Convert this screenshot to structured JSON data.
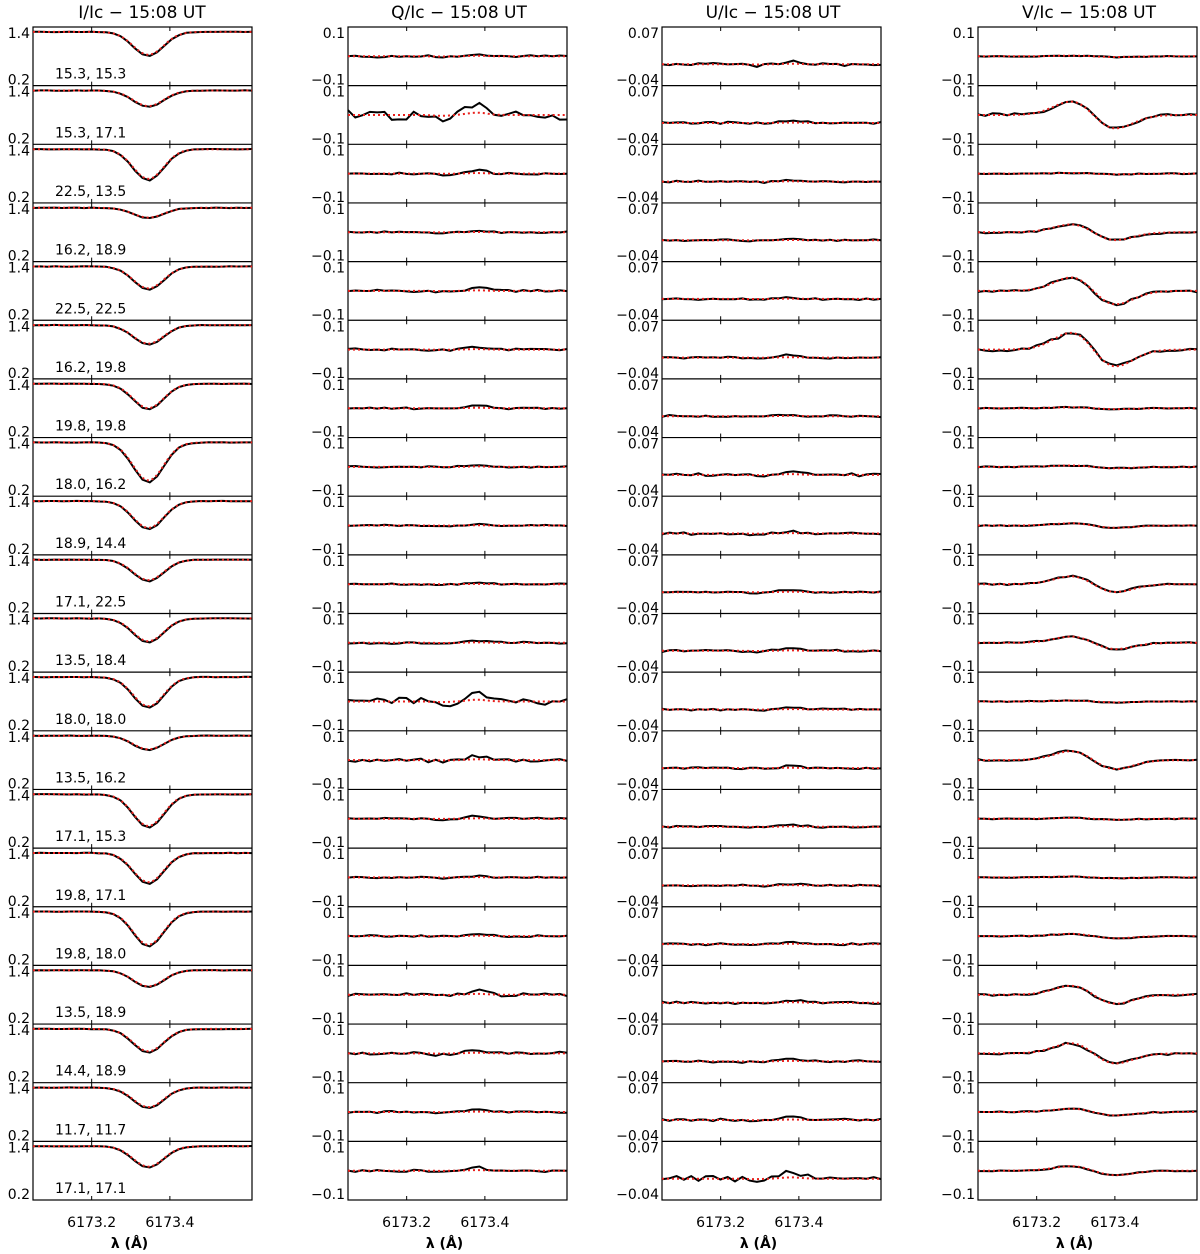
{
  "chart_data": {
    "type": "line",
    "xlabel": "λ (Å)",
    "x_tick_labels": [
      "6173.2",
      "6173.4"
    ],
    "x_ticks": [
      6173.2,
      6173.4
    ],
    "xlim": [
      6173.05,
      6173.61
    ],
    "rows": 20,
    "row_labels": [
      "15.3, 15.3",
      "15.3, 17.1",
      "22.5, 13.5",
      "16.2, 18.9",
      "22.5, 22.5",
      "16.2, 19.8",
      "19.8, 19.8",
      "18.0, 16.2",
      "18.9, 14.4",
      "17.1, 22.5",
      "13.5, 18.4",
      "18.0, 18.0",
      "13.5, 16.2",
      "17.1, 15.3",
      "19.8, 17.1",
      "19.8, 18.0",
      "13.5, 18.9",
      "14.4, 18.9",
      "11.7, 11.7",
      "17.1, 17.1"
    ],
    "series": [
      {
        "name": "observed",
        "color": "#000000",
        "style": "solid"
      },
      {
        "name": "fit",
        "color": "#e8201c",
        "style": "dotted"
      }
    ],
    "panels": [
      {
        "title": "I/Ic − 15:08 UT",
        "tick_top": "1.4",
        "tick_bottom": "0.2",
        "ylim": [
          0.2,
          1.4
        ],
        "profile": "absorption",
        "depth": [
          0.47,
          0.32,
          0.61,
          0.2,
          0.45,
          0.38,
          0.5,
          0.78,
          0.55,
          0.42,
          0.47,
          0.6,
          0.28,
          0.65,
          0.6,
          0.68,
          0.33,
          0.46,
          0.4,
          0.42
        ]
      },
      {
        "title": "Q/Ic − 15:08 UT",
        "tick_top": "0.1",
        "tick_bottom": "−0.1",
        "ylim": [
          -0.1,
          0.1
        ],
        "profile": "linear",
        "amplitude": [
          0.01,
          0.04,
          0.01,
          0.005,
          0.01,
          0.008,
          0.008,
          0.008,
          0.005,
          0.005,
          0.008,
          0.03,
          0.015,
          0.008,
          0.005,
          0.008,
          0.015,
          0.012,
          0.008,
          0.01
        ]
      },
      {
        "title": "U/Ic − 15:08 UT",
        "tick_top": "0.07",
        "tick_bottom": "−0.04",
        "ylim": [
          -0.04,
          0.07
        ],
        "profile": "linear",
        "amplitude": [
          0.006,
          0.004,
          0.003,
          0.003,
          0.003,
          0.004,
          0.004,
          0.007,
          0.004,
          0.004,
          0.004,
          0.004,
          0.004,
          0.004,
          0.003,
          0.004,
          0.005,
          0.005,
          0.005,
          0.012
        ]
      },
      {
        "title": "V/Ic − 15:08 UT",
        "tick_top": "0.1",
        "tick_bottom": "−0.1",
        "ylim": [
          -0.1,
          0.1
        ],
        "profile": "antisymmetric",
        "amplitude": [
          0.003,
          0.06,
          0.003,
          0.035,
          0.06,
          0.075,
          0.004,
          0.006,
          0.01,
          0.035,
          0.028,
          0.004,
          0.04,
          0.004,
          0.004,
          0.01,
          0.04,
          0.045,
          0.015,
          0.02
        ]
      }
    ]
  }
}
